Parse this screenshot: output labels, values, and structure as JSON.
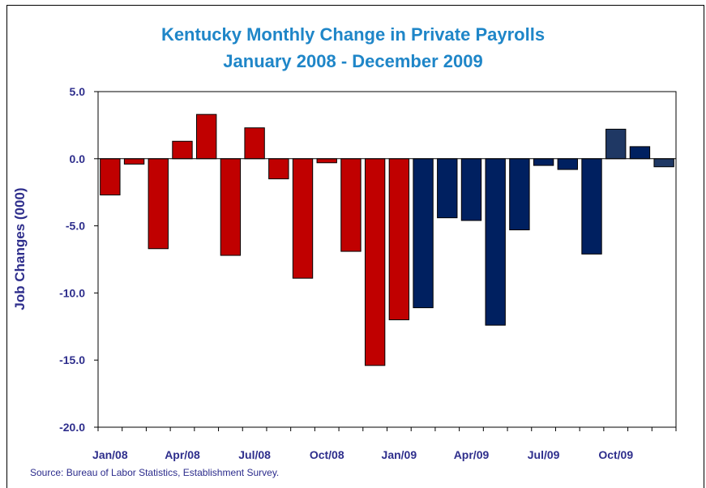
{
  "chart_data": {
    "type": "bar",
    "title": "Kentucky Monthly Change in Private Payrolls",
    "subtitle": "January 2008 - December 2009",
    "ylabel": "Job Changes (000)",
    "xlabel": "",
    "ylim": [
      -20,
      5
    ],
    "yticks": [
      "5.0",
      "0.0",
      "-5.0",
      "-10.0",
      "-15.0",
      "-20.0"
    ],
    "ytick_values": [
      5,
      0,
      -5,
      -10,
      -15,
      -20
    ],
    "xtick_labels": [
      "Jan/08",
      "Apr/08",
      "Jul/08",
      "Oct/08",
      "Jan/09",
      "Apr/09",
      "Jul/09",
      "Oct/09"
    ],
    "xtick_indices": [
      0,
      3,
      6,
      9,
      12,
      15,
      18,
      21
    ],
    "values": [
      -2.7,
      -0.4,
      -6.7,
      1.3,
      3.3,
      -7.2,
      2.3,
      -1.5,
      -8.9,
      -0.3,
      -6.9,
      -15.4,
      -12.0,
      -11.1,
      -4.4,
      -4.6,
      -12.4,
      -5.3,
      -0.5,
      -0.8,
      -7.1,
      2.2,
      0.9,
      -0.6
    ],
    "bar_colors": [
      "#c00000",
      "#c00000",
      "#c00000",
      "#c00000",
      "#c00000",
      "#c00000",
      "#c00000",
      "#c00000",
      "#c00000",
      "#c00000",
      "#c00000",
      "#c00000",
      "#c00000",
      "#002060",
      "#002060",
      "#002060",
      "#002060",
      "#002060",
      "#002060",
      "#002060",
      "#002060",
      "#1f3864",
      "#002060",
      "#1f3864"
    ],
    "grid": false,
    "legend": "none"
  },
  "source_note": "Source: Bureau of Labor Statistics, Establishment Survey."
}
